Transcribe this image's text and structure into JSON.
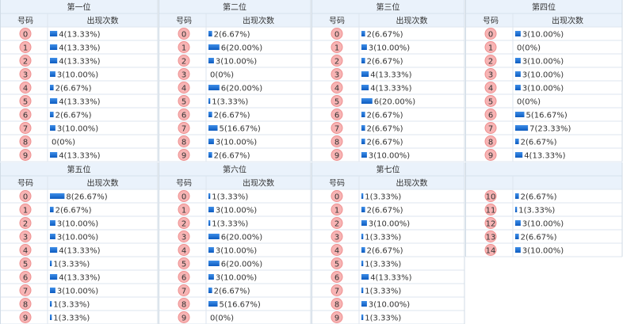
{
  "panels": [
    {
      "title": "第一位",
      "col_number": "号码",
      "col_count": "出现次数",
      "rows": [
        {
          "number": "0",
          "count": 4,
          "label": "4(13.33%)"
        },
        {
          "number": "1",
          "count": 4,
          "label": "4(13.33%)"
        },
        {
          "number": "2",
          "count": 4,
          "label": "4(13.33%)"
        },
        {
          "number": "3",
          "count": 3,
          "label": "3(10.00%)"
        },
        {
          "number": "4",
          "count": 2,
          "label": "2(6.67%)"
        },
        {
          "number": "5",
          "count": 4,
          "label": "4(13.33%)"
        },
        {
          "number": "6",
          "count": 2,
          "label": "2(6.67%)"
        },
        {
          "number": "7",
          "count": 3,
          "label": "3(10.00%)"
        },
        {
          "number": "8",
          "count": 0,
          "label": "0(0%)"
        },
        {
          "number": "9",
          "count": 4,
          "label": "4(13.33%)"
        }
      ]
    },
    {
      "title": "第二位",
      "col_number": "号码",
      "col_count": "出现次数",
      "rows": [
        {
          "number": "0",
          "count": 2,
          "label": "2(6.67%)"
        },
        {
          "number": "1",
          "count": 6,
          "label": "6(20.00%)"
        },
        {
          "number": "2",
          "count": 3,
          "label": "3(10.00%)"
        },
        {
          "number": "3",
          "count": 0,
          "label": "0(0%)"
        },
        {
          "number": "4",
          "count": 6,
          "label": "6(20.00%)"
        },
        {
          "number": "5",
          "count": 1,
          "label": "1(3.33%)"
        },
        {
          "number": "6",
          "count": 2,
          "label": "2(6.67%)"
        },
        {
          "number": "7",
          "count": 5,
          "label": "5(16.67%)"
        },
        {
          "number": "8",
          "count": 3,
          "label": "3(10.00%)"
        },
        {
          "number": "9",
          "count": 2,
          "label": "2(6.67%)"
        }
      ]
    },
    {
      "title": "第三位",
      "col_number": "号码",
      "col_count": "出现次数",
      "rows": [
        {
          "number": "0",
          "count": 2,
          "label": "2(6.67%)"
        },
        {
          "number": "1",
          "count": 3,
          "label": "3(10.00%)"
        },
        {
          "number": "2",
          "count": 2,
          "label": "2(6.67%)"
        },
        {
          "number": "3",
          "count": 4,
          "label": "4(13.33%)"
        },
        {
          "number": "4",
          "count": 4,
          "label": "4(13.33%)"
        },
        {
          "number": "5",
          "count": 6,
          "label": "6(20.00%)"
        },
        {
          "number": "6",
          "count": 2,
          "label": "2(6.67%)"
        },
        {
          "number": "7",
          "count": 2,
          "label": "2(6.67%)"
        },
        {
          "number": "8",
          "count": 2,
          "label": "2(6.67%)"
        },
        {
          "number": "9",
          "count": 3,
          "label": "3(10.00%)"
        }
      ]
    },
    {
      "title": "第四位",
      "col_number": "号码",
      "col_count": "出现次数",
      "rows": [
        {
          "number": "0",
          "count": 3,
          "label": "3(10.00%)"
        },
        {
          "number": "1",
          "count": 0,
          "label": "0(0%)"
        },
        {
          "number": "2",
          "count": 3,
          "label": "3(10.00%)"
        },
        {
          "number": "3",
          "count": 3,
          "label": "3(10.00%)"
        },
        {
          "number": "4",
          "count": 3,
          "label": "3(10.00%)"
        },
        {
          "number": "5",
          "count": 0,
          "label": "0(0%)"
        },
        {
          "number": "6",
          "count": 5,
          "label": "5(16.67%)"
        },
        {
          "number": "7",
          "count": 7,
          "label": "7(23.33%)"
        },
        {
          "number": "8",
          "count": 2,
          "label": "2(6.67%)"
        },
        {
          "number": "9",
          "count": 4,
          "label": "4(13.33%)"
        }
      ]
    },
    {
      "title": "第五位",
      "col_number": "号码",
      "col_count": "出现次数",
      "rows": [
        {
          "number": "0",
          "count": 8,
          "label": "8(26.67%)"
        },
        {
          "number": "1",
          "count": 2,
          "label": "2(6.67%)"
        },
        {
          "number": "2",
          "count": 3,
          "label": "3(10.00%)"
        },
        {
          "number": "3",
          "count": 3,
          "label": "3(10.00%)"
        },
        {
          "number": "4",
          "count": 4,
          "label": "4(13.33%)"
        },
        {
          "number": "5",
          "count": 1,
          "label": "1(3.33%)"
        },
        {
          "number": "6",
          "count": 4,
          "label": "4(13.33%)"
        },
        {
          "number": "7",
          "count": 3,
          "label": "3(10.00%)"
        },
        {
          "number": "8",
          "count": 1,
          "label": "1(3.33%)"
        },
        {
          "number": "9",
          "count": 1,
          "label": "1(3.33%)"
        }
      ]
    },
    {
      "title": "第六位",
      "col_number": "号码",
      "col_count": "出现次数",
      "rows": [
        {
          "number": "0",
          "count": 1,
          "label": "1(3.33%)"
        },
        {
          "number": "1",
          "count": 3,
          "label": "3(10.00%)"
        },
        {
          "number": "2",
          "count": 1,
          "label": "1(3.33%)"
        },
        {
          "number": "3",
          "count": 6,
          "label": "6(20.00%)"
        },
        {
          "number": "4",
          "count": 3,
          "label": "3(10.00%)"
        },
        {
          "number": "5",
          "count": 6,
          "label": "6(20.00%)"
        },
        {
          "number": "6",
          "count": 3,
          "label": "3(10.00%)"
        },
        {
          "number": "7",
          "count": 2,
          "label": "2(6.67%)"
        },
        {
          "number": "8",
          "count": 5,
          "label": "5(16.67%)"
        },
        {
          "number": "9",
          "count": 0,
          "label": "0(0%)"
        }
      ]
    },
    {
      "title": "第七位",
      "col_number": "号码",
      "col_count": "出现次数",
      "rows": [
        {
          "number": "0",
          "count": 1,
          "label": "1(3.33%)"
        },
        {
          "number": "1",
          "count": 2,
          "label": "2(6.67%)"
        },
        {
          "number": "2",
          "count": 3,
          "label": "3(10.00%)"
        },
        {
          "number": "3",
          "count": 1,
          "label": "1(3.33%)"
        },
        {
          "number": "4",
          "count": 2,
          "label": "2(6.67%)"
        },
        {
          "number": "5",
          "count": 1,
          "label": "1(3.33%)"
        },
        {
          "number": "6",
          "count": 4,
          "label": "4(13.33%)"
        },
        {
          "number": "7",
          "count": 1,
          "label": "1(3.33%)"
        },
        {
          "number": "8",
          "count": 3,
          "label": "3(10.00%)"
        },
        {
          "number": "9",
          "count": 1,
          "label": "1(3.33%)"
        }
      ]
    },
    {
      "rows": [
        {
          "number": "10",
          "count": 2,
          "label": "2(6.67%)"
        },
        {
          "number": "11",
          "count": 1,
          "label": "1(3.33%)"
        },
        {
          "number": "12",
          "count": 3,
          "label": "3(10.00%)"
        },
        {
          "number": "13",
          "count": 2,
          "label": "2(6.67%)"
        },
        {
          "number": "14",
          "count": 3,
          "label": "3(10.00%)"
        }
      ]
    }
  ]
}
